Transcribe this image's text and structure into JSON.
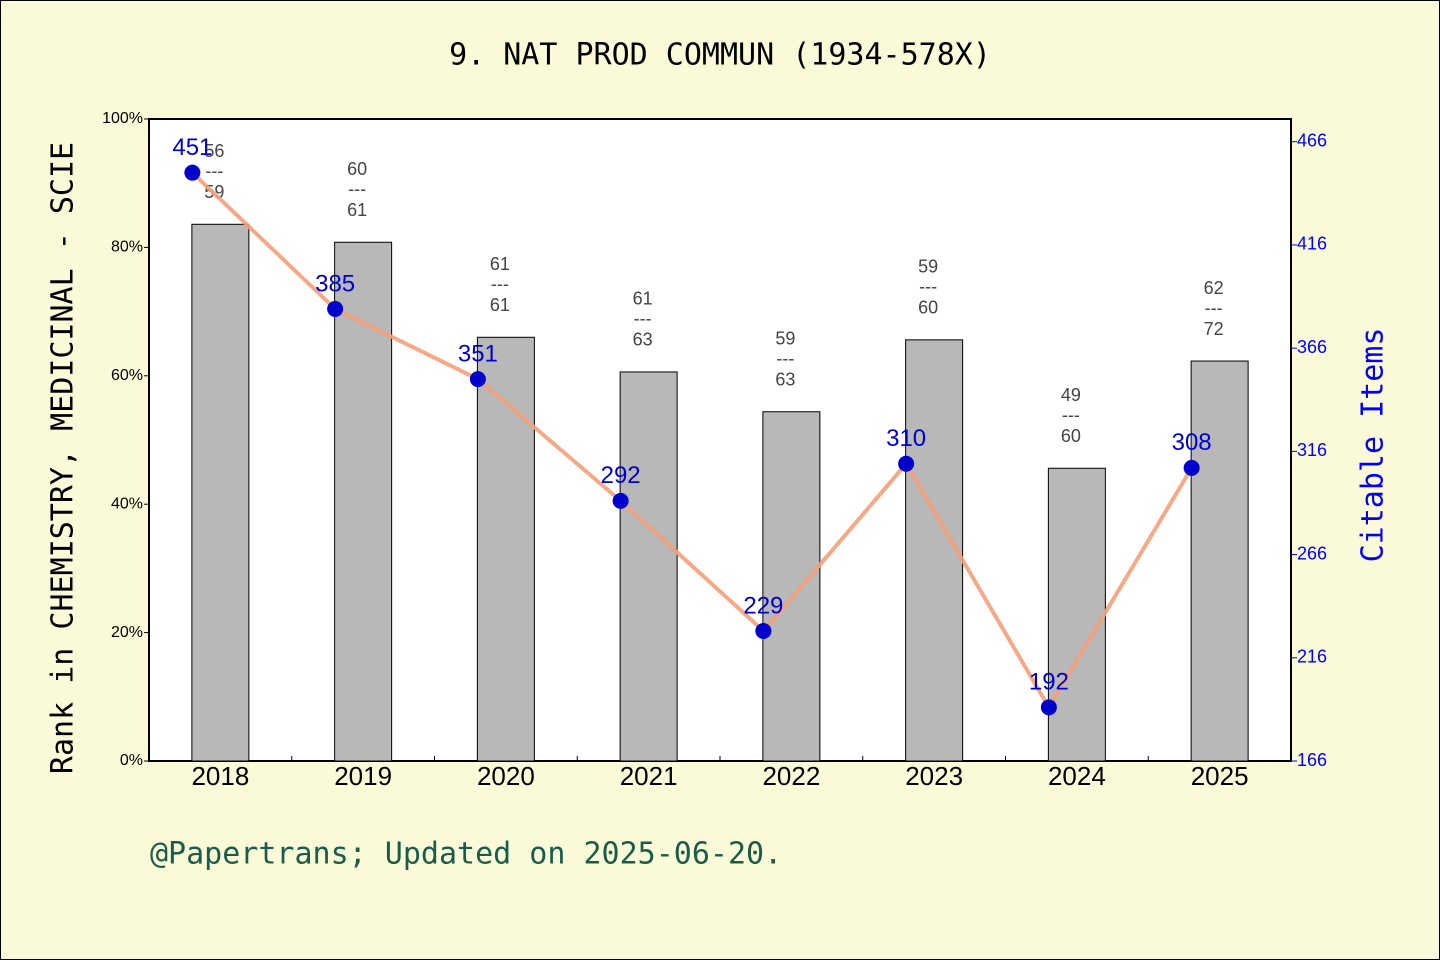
{
  "chart_data": {
    "type": "bar",
    "title": "9. NAT PROD COMMUN (1934-578X)",
    "y_label": "Rank in CHEMISTRY, MEDICINAL - SCIE",
    "y2_label": "Citable Items",
    "categories": [
      "2018",
      "2019",
      "2020",
      "2021",
      "2022",
      "2023",
      "2024",
      "2025"
    ],
    "series": [
      {
        "color": "#b8b8b8",
        "values": [
          83.6,
          80.8,
          66.0,
          60.6,
          54.4,
          65.6,
          45.6,
          62.3
        ]
      },
      {
        "color": "#f4a07a",
        "marker_color": "#0000cc",
        "axis": "y2",
        "values": [
          451,
          385,
          351,
          292,
          229,
          310,
          192,
          308
        ]
      }
    ],
    "ranks": [
      56,
      60,
      61,
      61,
      59,
      59,
      49,
      62
    ],
    "totals": [
      59,
      61,
      61,
      63,
      63,
      60,
      60,
      72
    ],
    "rank_separator": "---",
    "ylim": [
      0,
      100
    ],
    "yticks": [
      {
        "value": 0,
        "label": "0%"
      },
      {
        "value": 20,
        "label": "20%"
      },
      {
        "value": 40,
        "label": "40%"
      },
      {
        "value": 60,
        "label": "60%"
      },
      {
        "value": 80,
        "label": "80%"
      },
      {
        "value": 100,
        "label": "100%"
      }
    ],
    "y2lim": [
      166,
      477
    ],
    "y2ticks": [
      166,
      216,
      266,
      316,
      366,
      416,
      466
    ]
  },
  "footer": "@Papertrans; Updated on 2025-06-20."
}
